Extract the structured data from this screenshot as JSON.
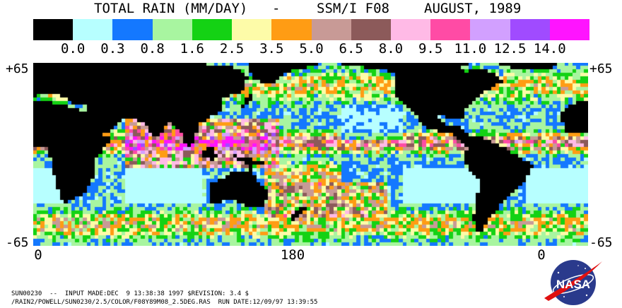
{
  "header": {
    "title_left": "TOTAL RAIN (MM/DAY)",
    "separator": "-",
    "sensor": "SSM/I F08",
    "date": "AUGUST, 1989"
  },
  "legend": {
    "colors": [
      "#000000",
      "#b7ffff",
      "#1478ff",
      "#a8f5a0",
      "#14d214",
      "#fdfba8",
      "#ff9c14",
      "#c89a96",
      "#8c5a5a",
      "#ffbae6",
      "#ff4ba5",
      "#d2a0ff",
      "#a04bff",
      "#ff14ff"
    ],
    "labels": [
      "0.0",
      "0.3",
      "0.8",
      "1.6",
      "2.5",
      "3.5",
      "5.0",
      "6.5",
      "8.0",
      "9.5",
      "11.0",
      "12.5",
      "14.0"
    ]
  },
  "axes": {
    "lat_top_left": "+65",
    "lat_top_right": "+65",
    "lat_bottom_left": "-65",
    "lat_bottom_right": "-65",
    "lon_left": "0",
    "lon_mid": "180",
    "lon_right": "0"
  },
  "footer": {
    "line1": "SUN00230  --  INPUT MADE:DEC  9 13:38:38 1997 $REVISION: 3.4 $",
    "line2": "/RAIN2/POWELL/SUN0230/2.5/COLOR/F08Y89M08_2.5DEG.RAS  RUN DATE:12/09/97 13:39:55"
  },
  "logo": {
    "text": "NASA",
    "bg_color": "#2a3a8c",
    "swoosh_color": "#e01010"
  }
}
